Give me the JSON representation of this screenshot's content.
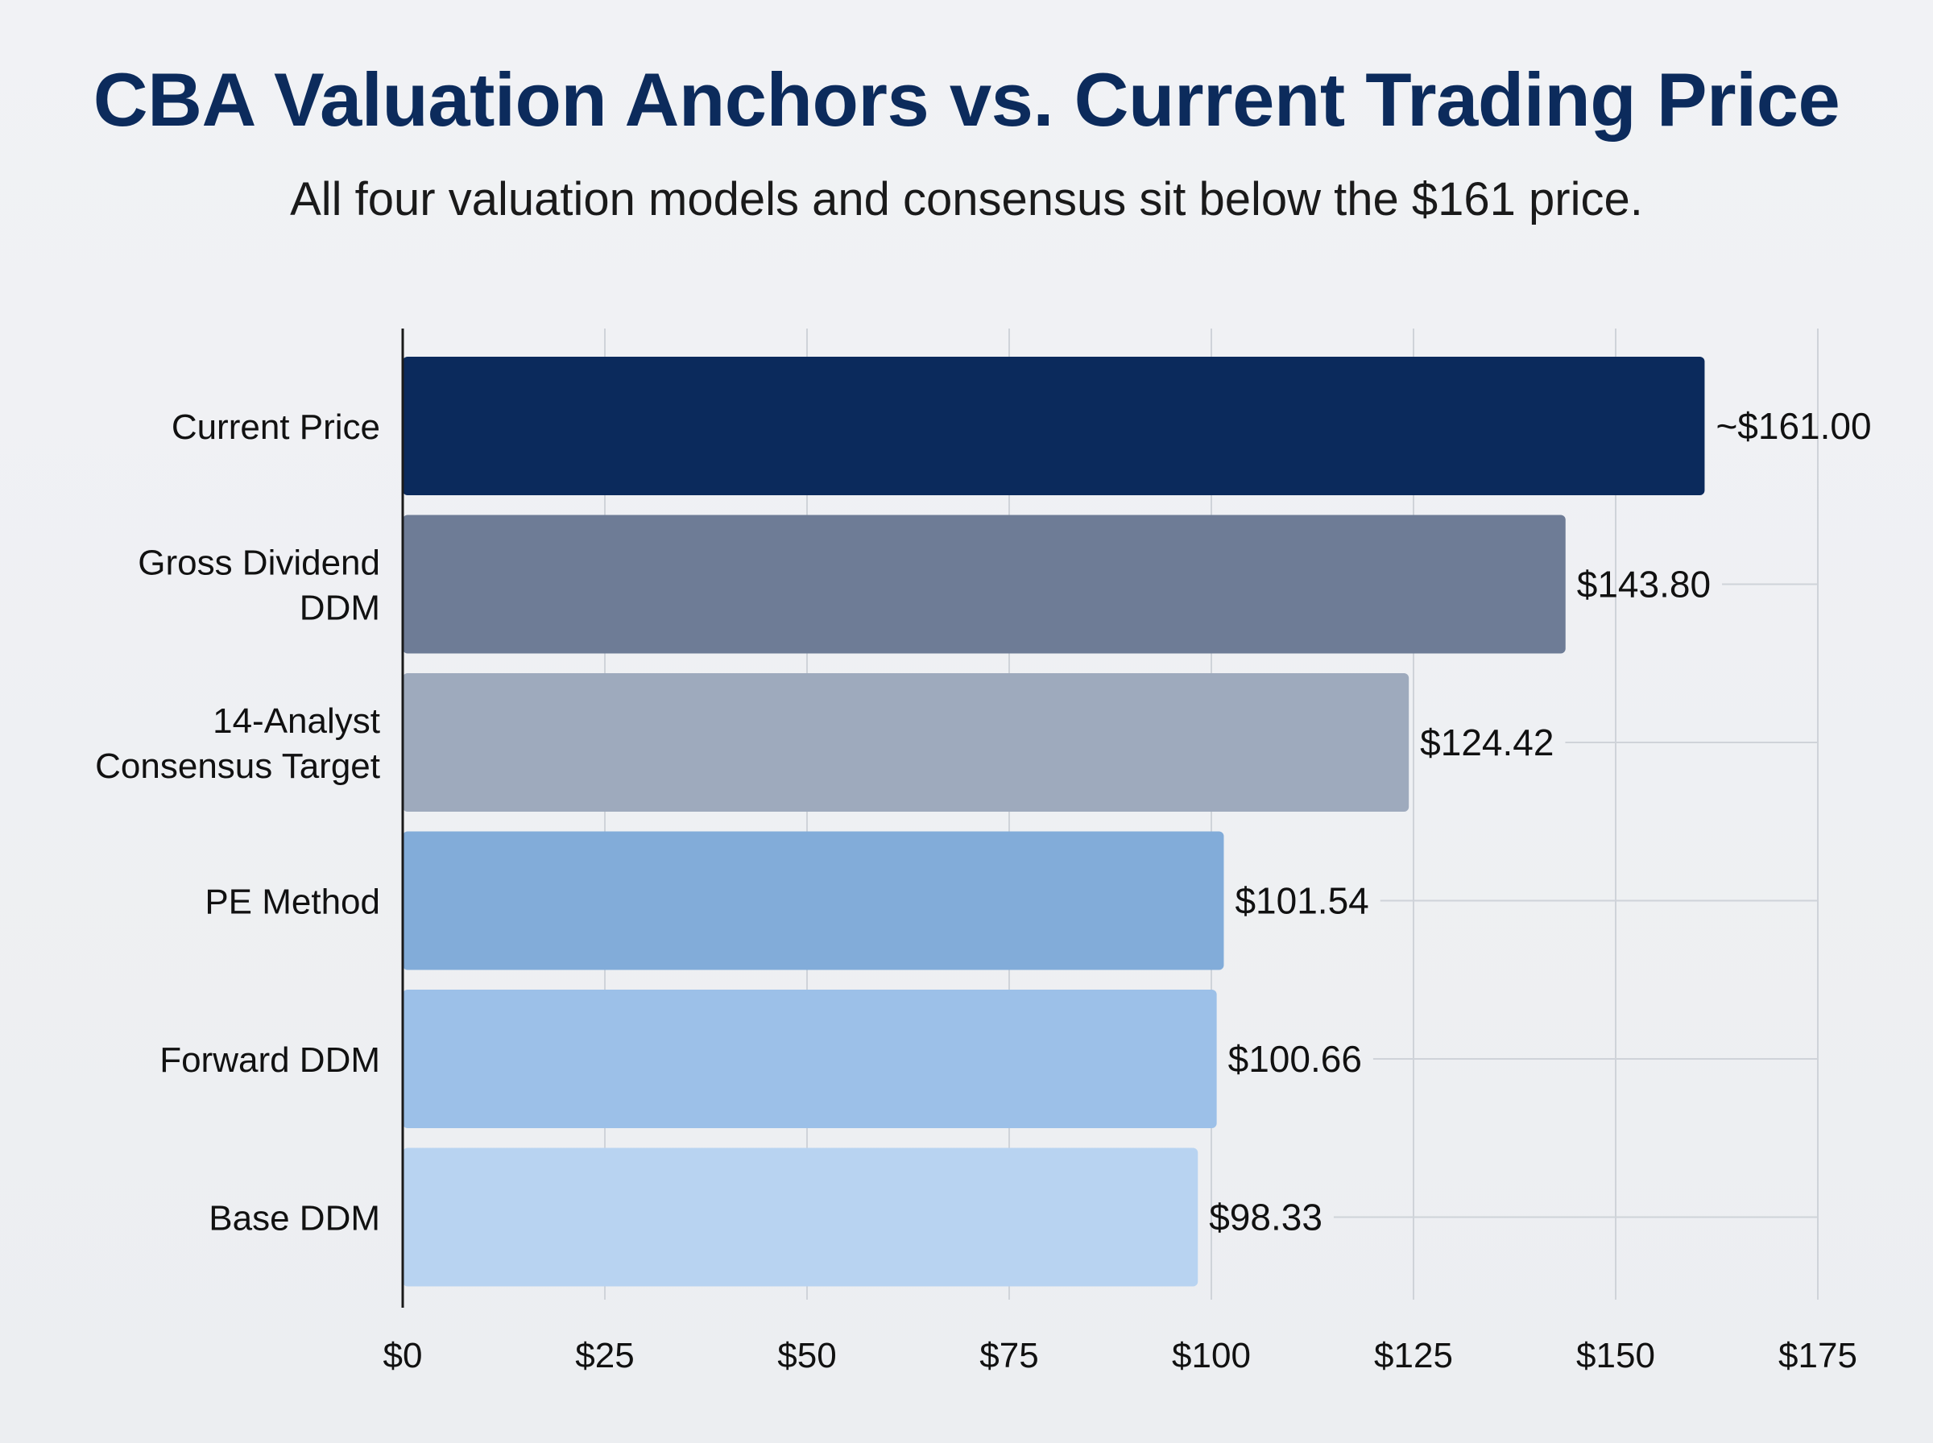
{
  "chart_data": {
    "type": "bar",
    "orientation": "horizontal",
    "title": "CBA Valuation Anchors vs. Current Trading Price",
    "subtitle": "All four valuation models and consensus sit below the $161 price.",
    "categories": [
      [
        "Current Price"
      ],
      [
        "Gross Dividend",
        "DDM"
      ],
      [
        "14-Analyst",
        "Consensus Target"
      ],
      [
        "PE Method"
      ],
      [
        "Forward DDM"
      ],
      [
        "Base DDM"
      ]
    ],
    "values": [
      161.0,
      143.8,
      124.42,
      101.54,
      100.66,
      98.33
    ],
    "value_labels": [
      "~$161.00",
      "$143.80",
      "$124.42",
      "$101.54",
      "$100.66",
      "$98.33"
    ],
    "bar_colors": [
      "#0b2a5c",
      "#6e7c96",
      "#9eaabd",
      "#82acd9",
      "#9cc0e8",
      "#b8d3f1"
    ],
    "xlim": [
      0,
      175
    ],
    "x_ticks": [
      0,
      25,
      50,
      75,
      100,
      125,
      150,
      175
    ],
    "x_tick_labels": [
      "$0",
      "$25",
      "$50",
      "$75",
      "$100",
      "$125",
      "$150",
      "$175"
    ],
    "xlabel": "",
    "ylabel": "",
    "grid": true,
    "legend": "none"
  }
}
